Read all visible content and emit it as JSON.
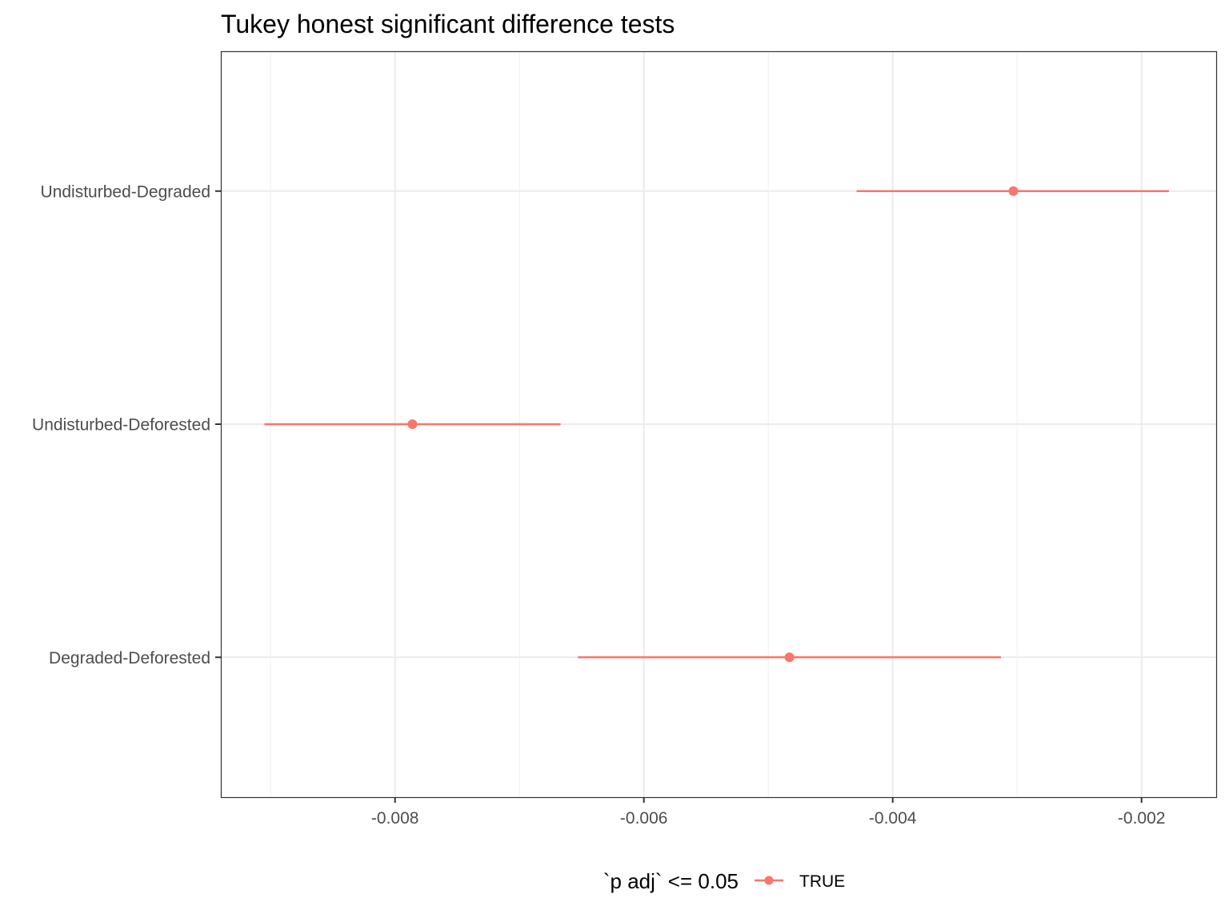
{
  "chart_data": {
    "type": "errorbar",
    "title": "Tukey honest significant difference tests",
    "xlabel": "",
    "ylabel": "",
    "categories": [
      "Undisturbed-Degraded",
      "Undisturbed-Deforested",
      "Degraded-Deforested"
    ],
    "x_ticks": [
      -0.008,
      -0.006,
      -0.004,
      -0.002
    ],
    "x_tick_labels": [
      "-0.008",
      "-0.006",
      "-0.004",
      "-0.002"
    ],
    "xlim": [
      -0.0094,
      -0.0014
    ],
    "grid": true,
    "series": [
      {
        "name": "TRUE",
        "color": "#F8766D",
        "points": [
          {
            "category": "Undisturbed-Degraded",
            "estimate": -0.00303,
            "lower": -0.00429,
            "upper": -0.00178
          },
          {
            "category": "Undisturbed-Deforested",
            "estimate": -0.00786,
            "lower": -0.00905,
            "upper": -0.00667
          },
          {
            "category": "Degraded-Deforested",
            "estimate": -0.00483,
            "lower": -0.00653,
            "upper": -0.00313
          }
        ]
      }
    ],
    "legend": {
      "title": "`p adj` <= 0.05",
      "labels": [
        "TRUE"
      ],
      "position": "bottom"
    }
  }
}
